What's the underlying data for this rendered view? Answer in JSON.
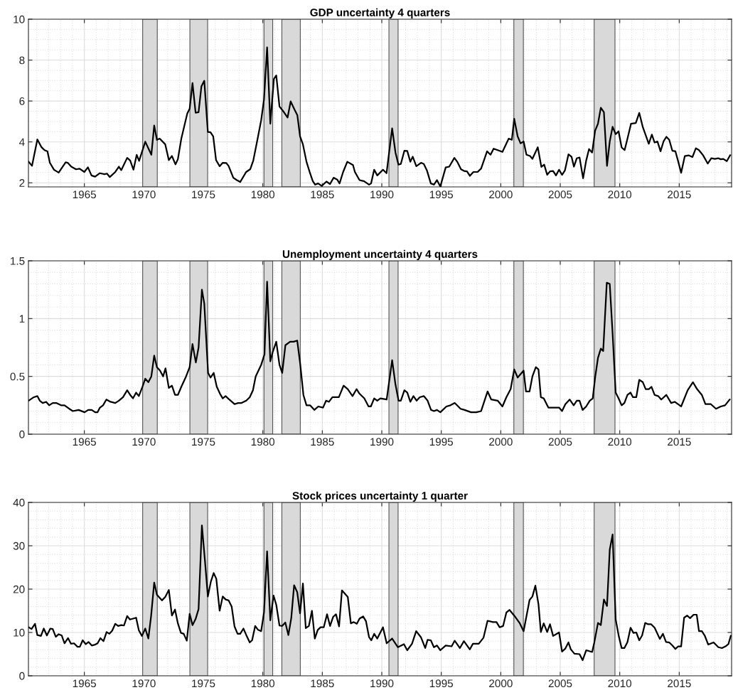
{
  "chart_data": [
    {
      "type": "line",
      "title": "GDP uncertainty 4 quarters",
      "color": "#000000",
      "grid": true,
      "xlim": [
        1960.3,
        2019.4
      ],
      "xticks": [
        1965,
        1970,
        1975,
        1980,
        1985,
        1990,
        1995,
        2000,
        2005,
        2010,
        2015
      ],
      "ylim": [
        1.8,
        10
      ],
      "yticks": [
        2,
        4,
        6,
        8,
        10
      ],
      "bands": [
        {
          "axis": "x",
          "from": 1969.9,
          "to": 1971.13,
          "color": "#d9d9d9"
        },
        {
          "axis": "x",
          "from": 1973.87,
          "to": 1975.36,
          "color": "#d9d9d9"
        },
        {
          "axis": "x",
          "from": 1980.1,
          "to": 1980.83,
          "color": "#d9d9d9"
        },
        {
          "axis": "x",
          "from": 1981.6,
          "to": 1983.15,
          "color": "#d9d9d9"
        },
        {
          "axis": "x",
          "from": 1990.6,
          "to": 1991.37,
          "color": "#d9d9d9"
        },
        {
          "axis": "x",
          "from": 2001.1,
          "to": 2001.9,
          "color": "#d9d9d9"
        },
        {
          "axis": "x",
          "from": 2007.85,
          "to": 2009.6,
          "color": "#d9d9d9"
        }
      ],
      "x": [
        1960.32,
        1960.6,
        1961.05,
        1961.4,
        1961.65,
        1961.9,
        1962.1,
        1962.45,
        1962.84,
        1963.43,
        1963.6,
        1963.9,
        1964.3,
        1964.6,
        1965.0,
        1965.3,
        1965.6,
        1965.9,
        1966.3,
        1966.7,
        1966.9,
        1967.14,
        1967.6,
        1967.9,
        1968.1,
        1968.6,
        1968.85,
        1969.13,
        1969.4,
        1969.6,
        1970.12,
        1970.63,
        1970.87,
        1971.1,
        1971.33,
        1971.8,
        1972.1,
        1972.36,
        1972.66,
        1972.86,
        1973.15,
        1973.65,
        1973.85,
        1974.09,
        1974.35,
        1974.6,
        1974.84,
        1975.08,
        1975.38,
        1975.6,
        1975.83,
        1976.07,
        1976.37,
        1976.63,
        1976.92,
        1977.12,
        1977.52,
        1977.82,
        1978.1,
        1978.6,
        1978.95,
        1979.2,
        1979.6,
        1979.86,
        1980.1,
        1980.36,
        1980.63,
        1980.93,
        1981.13,
        1981.4,
        1981.7,
        1982.08,
        1982.34,
        1982.68,
        1982.9,
        1983.13,
        1983.37,
        1983.67,
        1983.97,
        1984.2,
        1984.4,
        1984.65,
        1984.95,
        1985.35,
        1985.65,
        1985.95,
        1986.25,
        1986.45,
        1986.75,
        1987.1,
        1987.58,
        1987.74,
        1988.13,
        1988.5,
        1988.93,
        1989.1,
        1989.36,
        1989.62,
        1990.1,
        1990.4,
        1990.87,
        1991.15,
        1991.4,
        1991.6,
        1991.9,
        1992.14,
        1992.4,
        1992.6,
        1992.9,
        1993.3,
        1993.53,
        1993.79,
        1994.12,
        1994.38,
        1994.64,
        1994.92,
        1995.37,
        1995.67,
        1996.1,
        1996.37,
        1996.66,
        1996.92,
        1997.16,
        1997.4,
        1997.7,
        1998.05,
        1998.35,
        1998.85,
        1999.14,
        1999.4,
        1999.74,
        2000.14,
        2000.67,
        2000.93,
        2001.13,
        2001.42,
        2001.66,
        2001.92,
        2002.16,
        2002.46,
        2002.66,
        2003.11,
        2003.41,
        2003.65,
        2003.9,
        2004.14,
        2004.4,
        2004.64,
        2004.9,
        2005.15,
        2005.39,
        2005.69,
        2005.95,
        2006.15,
        2006.39,
        2006.62,
        2006.92,
        2007.18,
        2007.42,
        2007.68,
        2007.93,
        2008.17,
        2008.41,
        2008.67,
        2008.93,
        2009.16,
        2009.4,
        2009.66,
        2009.9,
        2010.16,
        2010.41,
        2010.65,
        2010.95,
        2011.35,
        2011.64,
        2011.94,
        2012.44,
        2012.7,
        2012.93,
        2013.17,
        2013.43,
        2013.69,
        2013.92,
        2014.16,
        2014.42,
        2014.68,
        2014.92,
        2015.16,
        2015.47,
        2015.81,
        2016.11,
        2016.4,
        2016.66,
        2017.0,
        2017.4,
        2017.7,
        2018.0,
        2018.29,
        2018.5,
        2018.7,
        2019.0,
        2019.28
      ],
      "values": [
        3.03,
        2.83,
        4.12,
        3.74,
        3.6,
        3.54,
        2.98,
        2.64,
        2.5,
        3.0,
        2.98,
        2.79,
        2.66,
        2.69,
        2.53,
        2.76,
        2.36,
        2.3,
        2.47,
        2.42,
        2.45,
        2.28,
        2.53,
        2.79,
        2.62,
        3.22,
        3.09,
        2.64,
        3.37,
        3.07,
        4.01,
        3.37,
        4.8,
        4.1,
        4.16,
        3.88,
        3.11,
        3.31,
        2.9,
        3.15,
        4.16,
        5.39,
        5.62,
        6.88,
        5.43,
        5.45,
        6.72,
        6.99,
        4.49,
        4.47,
        4.27,
        3.11,
        2.81,
        2.98,
        2.97,
        2.83,
        2.25,
        2.13,
        2.04,
        2.53,
        2.67,
        3.09,
        4.27,
        5.06,
        6.07,
        8.62,
        4.89,
        7.08,
        7.25,
        5.73,
        5.51,
        5.19,
        5.98,
        5.56,
        5.31,
        4.27,
        3.88,
        3.03,
        2.47,
        2.08,
        1.91,
        1.97,
        1.85,
        2.06,
        1.94,
        2.25,
        2.16,
        1.97,
        2.53,
        3.03,
        2.87,
        2.53,
        2.13,
        2.08,
        1.91,
        1.97,
        2.64,
        2.36,
        2.64,
        2.47,
        4.66,
        3.48,
        2.89,
        2.92,
        3.57,
        3.56,
        3.03,
        3.28,
        2.81,
        2.98,
        2.92,
        2.61,
        1.97,
        1.91,
        2.13,
        1.82,
        2.75,
        2.79,
        3.22,
        3.0,
        2.66,
        2.58,
        2.56,
        2.34,
        2.53,
        2.53,
        2.7,
        3.54,
        3.37,
        3.67,
        3.6,
        3.51,
        4.16,
        4.1,
        5.13,
        4.27,
        3.93,
        4.02,
        3.37,
        3.31,
        3.17,
        3.74,
        2.78,
        2.89,
        2.39,
        2.56,
        2.58,
        2.36,
        2.64,
        2.39,
        2.6,
        3.39,
        3.27,
        2.79,
        3.2,
        3.24,
        2.22,
        3.09,
        3.65,
        3.48,
        4.55,
        4.89,
        5.67,
        5.45,
        2.83,
        4.02,
        4.74,
        4.38,
        4.52,
        3.73,
        3.6,
        4.16,
        4.89,
        4.92,
        5.42,
        4.72,
        3.91,
        4.36,
        3.97,
        4.02,
        3.54,
        4.04,
        4.25,
        4.1,
        3.57,
        3.54,
        3.03,
        2.49,
        3.31,
        3.34,
        3.26,
        3.69,
        3.6,
        3.35,
        2.94,
        3.2,
        3.17,
        3.2,
        3.15,
        3.17,
        3.06,
        3.35
      ]
    },
    {
      "type": "line",
      "title": "Unemployment uncertainty 4 quarters",
      "color": "#000000",
      "grid": true,
      "xlim": [
        1960.3,
        2019.4
      ],
      "xticks": [
        1965,
        1970,
        1975,
        1980,
        1985,
        1990,
        1995,
        2000,
        2005,
        2010,
        2015
      ],
      "ylim": [
        0,
        1.5
      ],
      "yticks": [
        0,
        0.5,
        1,
        1.5
      ],
      "bands": [
        {
          "axis": "x",
          "from": 1969.9,
          "to": 1971.13,
          "color": "#d9d9d9"
        },
        {
          "axis": "x",
          "from": 1973.87,
          "to": 1975.36,
          "color": "#d9d9d9"
        },
        {
          "axis": "x",
          "from": 1980.1,
          "to": 1980.83,
          "color": "#d9d9d9"
        },
        {
          "axis": "x",
          "from": 1981.6,
          "to": 1983.15,
          "color": "#d9d9d9"
        },
        {
          "axis": "x",
          "from": 1990.6,
          "to": 1991.37,
          "color": "#d9d9d9"
        },
        {
          "axis": "x",
          "from": 2001.1,
          "to": 2001.9,
          "color": "#d9d9d9"
        },
        {
          "axis": "x",
          "from": 2007.85,
          "to": 2009.6,
          "color": "#d9d9d9"
        }
      ],
      "x": [
        1960.32,
        1960.75,
        1961.05,
        1961.25,
        1961.5,
        1961.79,
        1962.04,
        1962.34,
        1962.64,
        1963.04,
        1963.33,
        1963.73,
        1964.03,
        1964.52,
        1965.02,
        1965.32,
        1965.62,
        1965.91,
        1966.11,
        1966.31,
        1966.57,
        1966.85,
        1967.2,
        1967.6,
        1967.9,
        1968.25,
        1968.6,
        1968.85,
        1969.09,
        1969.35,
        1969.58,
        1969.88,
        1970.12,
        1970.38,
        1970.63,
        1970.87,
        1971.1,
        1971.36,
        1971.62,
        1971.82,
        1972.1,
        1972.36,
        1972.62,
        1972.86,
        1973.15,
        1973.55,
        1973.85,
        1974.09,
        1974.37,
        1974.6,
        1974.88,
        1975.08,
        1975.4,
        1975.6,
        1975.87,
        1976.13,
        1976.4,
        1976.63,
        1976.87,
        1977.18,
        1977.62,
        1977.92,
        1978.21,
        1978.61,
        1978.9,
        1979.17,
        1979.4,
        1979.86,
        1980.14,
        1980.36,
        1980.63,
        1980.83,
        1981.13,
        1981.4,
        1981.63,
        1981.9,
        1982.29,
        1982.59,
        1982.89,
        1983.13,
        1983.41,
        1983.67,
        1983.97,
        1984.33,
        1984.66,
        1985.06,
        1985.32,
        1985.56,
        1985.85,
        1986.15,
        1986.39,
        1986.79,
        1987.14,
        1987.54,
        1987.88,
        1988.13,
        1988.53,
        1988.89,
        1989.08,
        1989.36,
        1989.62,
        1989.88,
        1990.41,
        1990.87,
        1991.15,
        1991.41,
        1991.6,
        1991.9,
        1992.14,
        1992.4,
        1992.66,
        1992.93,
        1993.19,
        1993.53,
        1993.85,
        1994.14,
        1994.38,
        1994.64,
        1994.92,
        1995.43,
        1995.77,
        1996.13,
        1996.62,
        1996.96,
        1997.5,
        1997.95,
        1998.35,
        1998.89,
        1999.2,
        1999.74,
        2000.14,
        2000.47,
        2000.83,
        2001.13,
        2001.42,
        2001.92,
        2002.12,
        2002.42,
        2002.66,
        2002.95,
        2003.17,
        2003.37,
        2003.61,
        2004.0,
        2004.4,
        2004.9,
        2005.15,
        2005.43,
        2005.79,
        2006.13,
        2006.39,
        2006.62,
        2006.88,
        2007.18,
        2007.48,
        2007.73,
        2007.93,
        2008.17,
        2008.41,
        2008.61,
        2008.91,
        2009.16,
        2009.4,
        2009.66,
        2009.9,
        2010.16,
        2010.39,
        2010.65,
        2010.91,
        2011.11,
        2011.39,
        2011.64,
        2011.94,
        2012.18,
        2012.44,
        2012.67,
        2012.93,
        2013.23,
        2013.49,
        2013.92,
        2014.32,
        2014.62,
        2015.16,
        2015.71,
        2016.15,
        2016.5,
        2016.9,
        2017.2,
        2017.66,
        2018.09,
        2018.49,
        2018.85,
        2019.24
      ],
      "values": [
        0.29,
        0.32,
        0.33,
        0.29,
        0.27,
        0.28,
        0.25,
        0.27,
        0.27,
        0.25,
        0.25,
        0.22,
        0.2,
        0.21,
        0.19,
        0.21,
        0.21,
        0.19,
        0.19,
        0.23,
        0.25,
        0.3,
        0.28,
        0.27,
        0.29,
        0.32,
        0.38,
        0.34,
        0.31,
        0.36,
        0.33,
        0.41,
        0.48,
        0.45,
        0.5,
        0.68,
        0.58,
        0.55,
        0.5,
        0.57,
        0.4,
        0.42,
        0.34,
        0.34,
        0.41,
        0.5,
        0.58,
        0.78,
        0.62,
        0.75,
        1.25,
        1.13,
        0.53,
        0.49,
        0.53,
        0.41,
        0.35,
        0.31,
        0.33,
        0.3,
        0.26,
        0.27,
        0.27,
        0.29,
        0.32,
        0.38,
        0.5,
        0.6,
        0.69,
        1.32,
        0.63,
        0.71,
        0.8,
        0.6,
        0.53,
        0.77,
        0.8,
        0.8,
        0.81,
        0.62,
        0.34,
        0.25,
        0.25,
        0.21,
        0.24,
        0.23,
        0.29,
        0.28,
        0.32,
        0.32,
        0.32,
        0.42,
        0.39,
        0.33,
        0.39,
        0.35,
        0.31,
        0.24,
        0.24,
        0.31,
        0.29,
        0.31,
        0.3,
        0.64,
        0.43,
        0.29,
        0.29,
        0.38,
        0.36,
        0.28,
        0.33,
        0.29,
        0.32,
        0.33,
        0.29,
        0.21,
        0.2,
        0.21,
        0.19,
        0.24,
        0.25,
        0.27,
        0.22,
        0.21,
        0.19,
        0.19,
        0.2,
        0.37,
        0.3,
        0.29,
        0.24,
        0.32,
        0.39,
        0.56,
        0.49,
        0.55,
        0.37,
        0.37,
        0.5,
        0.58,
        0.56,
        0.32,
        0.31,
        0.23,
        0.23,
        0.23,
        0.2,
        0.26,
        0.3,
        0.25,
        0.29,
        0.29,
        0.21,
        0.24,
        0.29,
        0.31,
        0.49,
        0.66,
        0.74,
        0.72,
        1.31,
        1.3,
        0.87,
        0.36,
        0.31,
        0.25,
        0.27,
        0.34,
        0.36,
        0.32,
        0.32,
        0.47,
        0.45,
        0.39,
        0.39,
        0.41,
        0.34,
        0.33,
        0.3,
        0.34,
        0.27,
        0.28,
        0.24,
        0.38,
        0.45,
        0.39,
        0.34,
        0.26,
        0.26,
        0.22,
        0.24,
        0.25,
        0.3
      ]
    },
    {
      "type": "line",
      "title": "Stock prices uncertainty 1 quarter",
      "color": "#000000",
      "grid": true,
      "xlim": [
        1960.3,
        2019.4
      ],
      "xticks": [
        1965,
        1970,
        1975,
        1980,
        1985,
        1990,
        1995,
        2000,
        2005,
        2010,
        2015
      ],
      "ylim": [
        0,
        40
      ],
      "yticks": [
        0,
        10,
        20,
        30,
        40
      ],
      "bands": [
        {
          "axis": "x",
          "from": 1969.9,
          "to": 1971.13,
          "color": "#d9d9d9"
        },
        {
          "axis": "x",
          "from": 1973.87,
          "to": 1975.36,
          "color": "#d9d9d9"
        },
        {
          "axis": "x",
          "from": 1980.1,
          "to": 1980.83,
          "color": "#d9d9d9"
        },
        {
          "axis": "x",
          "from": 1981.6,
          "to": 1983.15,
          "color": "#d9d9d9"
        },
        {
          "axis": "x",
          "from": 1990.6,
          "to": 1991.37,
          "color": "#d9d9d9"
        },
        {
          "axis": "x",
          "from": 2001.1,
          "to": 2001.9,
          "color": "#d9d9d9"
        },
        {
          "axis": "x",
          "from": 2007.85,
          "to": 2009.6,
          "color": "#d9d9d9"
        }
      ],
      "x": [
        1960.32,
        1960.56,
        1960.85,
        1961.05,
        1961.35,
        1961.59,
        1961.85,
        1962.14,
        1962.34,
        1962.6,
        1962.84,
        1963.1,
        1963.33,
        1963.63,
        1963.87,
        1964.13,
        1964.42,
        1964.62,
        1964.86,
        1965.12,
        1965.36,
        1965.62,
        1965.91,
        1966.11,
        1966.35,
        1966.61,
        1966.87,
        1967.11,
        1967.34,
        1967.6,
        1967.84,
        1968.1,
        1968.33,
        1968.6,
        1968.83,
        1969.09,
        1969.35,
        1969.58,
        1969.84,
        1970.12,
        1970.38,
        1970.61,
        1970.87,
        1971.1,
        1971.52,
        1971.8,
        1972.1,
        1972.36,
        1972.62,
        1972.86,
        1973.12,
        1973.35,
        1973.61,
        1973.85,
        1974.09,
        1974.35,
        1974.6,
        1974.88,
        1975.14,
        1975.38,
        1975.63,
        1975.87,
        1976.09,
        1976.37,
        1976.63,
        1976.88,
        1977.12,
        1977.38,
        1977.62,
        1977.88,
        1978.1,
        1978.37,
        1978.61,
        1978.9,
        1979.1,
        1979.36,
        1979.6,
        1979.86,
        1980.1,
        1980.36,
        1980.63,
        1980.9,
        1981.13,
        1981.4,
        1981.63,
        1981.89,
        1982.15,
        1982.39,
        1982.63,
        1982.89,
        1983.13,
        1983.37,
        1983.61,
        1983.87,
        1984.13,
        1984.37,
        1984.62,
        1984.86,
        1985.12,
        1985.4,
        1985.65,
        1985.91,
        1986.15,
        1986.41,
        1986.65,
        1987.14,
        1987.4,
        1987.64,
        1987.9,
        1988.13,
        1988.43,
        1988.67,
        1988.93,
        1989.12,
        1989.36,
        1989.62,
        1990.1,
        1990.41,
        1990.87,
        1991.35,
        1991.86,
        1992.14,
        1992.54,
        1992.89,
        1993.29,
        1993.65,
        1993.85,
        1994.12,
        1994.38,
        1994.64,
        1994.92,
        1995.37,
        1995.87,
        1996.13,
        1996.56,
        1996.9,
        1997.4,
        1997.66,
        1998.15,
        1998.55,
        1998.89,
        1999.34,
        1999.64,
        1999.9,
        2000.2,
        2000.47,
        2000.73,
        2001.13,
        2001.58,
        2001.92,
        2002.42,
        2002.66,
        2002.91,
        2003.17,
        2003.37,
        2003.61,
        2003.9,
        2004.14,
        2004.4,
        2004.9,
        2005.15,
        2005.43,
        2005.69,
        2005.89,
        2006.19,
        2006.62,
        2006.88,
        2007.18,
        2007.68,
        2007.87,
        2008.17,
        2008.41,
        2008.67,
        2008.93,
        2009.16,
        2009.4,
        2009.66,
        2009.9,
        2010.16,
        2010.39,
        2010.65,
        2010.91,
        2011.15,
        2011.39,
        2011.64,
        2011.88,
        2012.14,
        2012.38,
        2012.64,
        2012.93,
        2013.37,
        2013.63,
        2013.89,
        2014.16,
        2014.42,
        2014.68,
        2014.92,
        2015.16,
        2015.41,
        2015.67,
        2015.91,
        2016.21,
        2016.47,
        2016.66,
        2016.9,
        2017.14,
        2017.44,
        2017.89,
        2018.29,
        2018.59,
        2018.89,
        2019.13,
        2019.33
      ],
      "values": [
        11.2,
        10.8,
        12.0,
        9.4,
        9.2,
        10.9,
        9.3,
        10.9,
        10.8,
        9.0,
        9.6,
        9.3,
        7.5,
        8.7,
        7.4,
        7.5,
        6.7,
        6.7,
        8.2,
        7.3,
        7.8,
        7.0,
        7.2,
        7.5,
        8.7,
        8.0,
        10.1,
        9.7,
        10.4,
        12.0,
        11.5,
        11.7,
        11.6,
        13.8,
        13.0,
        13.2,
        13.4,
        10.5,
        9.2,
        10.9,
        8.6,
        13.8,
        21.5,
        18.7,
        17.4,
        18.2,
        19.8,
        13.9,
        15.3,
        12.1,
        9.9,
        9.7,
        8.1,
        14.3,
        11.7,
        13.1,
        15.4,
        34.7,
        26.4,
        18.3,
        21.7,
        23.7,
        22.4,
        15.0,
        18.3,
        17.6,
        17.4,
        16.0,
        11.4,
        9.7,
        9.7,
        10.9,
        9.4,
        7.7,
        8.2,
        11.5,
        10.6,
        10.3,
        14.6,
        28.7,
        12.8,
        18.5,
        16.4,
        11.6,
        11.5,
        12.3,
        9.4,
        13.3,
        20.9,
        19.3,
        14.4,
        21.3,
        11.0,
        11.5,
        15.0,
        8.6,
        10.6,
        11.2,
        11.2,
        14.2,
        11.5,
        13.6,
        14.2,
        11.4,
        19.7,
        18.2,
        12.1,
        12.4,
        12.0,
        13.2,
        13.7,
        12.6,
        8.9,
        8.2,
        9.7,
        8.6,
        11.2,
        7.5,
        8.6,
        6.6,
        7.3,
        5.9,
        7.4,
        10.3,
        8.9,
        6.4,
        8.3,
        8.2,
        6.6,
        7.0,
        5.9,
        7.0,
        6.8,
        8.1,
        6.4,
        8.0,
        6.1,
        7.4,
        7.4,
        8.8,
        12.7,
        12.4,
        12.4,
        11.2,
        11.5,
        14.6,
        15.2,
        13.9,
        12.2,
        10.3,
        17.5,
        18.3,
        20.8,
        16.5,
        10.1,
        12.1,
        10.1,
        11.9,
        9.2,
        10.0,
        5.6,
        6.3,
        7.7,
        6.1,
        5.1,
        5.0,
        3.6,
        5.9,
        5.5,
        7.8,
        12.2,
        11.7,
        17.6,
        16.1,
        29.1,
        32.6,
        13.0,
        9.4,
        6.4,
        6.4,
        7.8,
        11.1,
        9.9,
        10.0,
        8.2,
        9.3,
        12.2,
        11.9,
        11.9,
        11.1,
        8.5,
        9.7,
        7.8,
        7.7,
        7.0,
        6.2,
        6.8,
        6.8,
        13.4,
        13.9,
        13.3,
        14.1,
        14.1,
        10.3,
        10.3,
        9.3,
        7.2,
        7.7,
        6.6,
        6.4,
        6.8,
        7.3,
        9.2
      ]
    }
  ]
}
